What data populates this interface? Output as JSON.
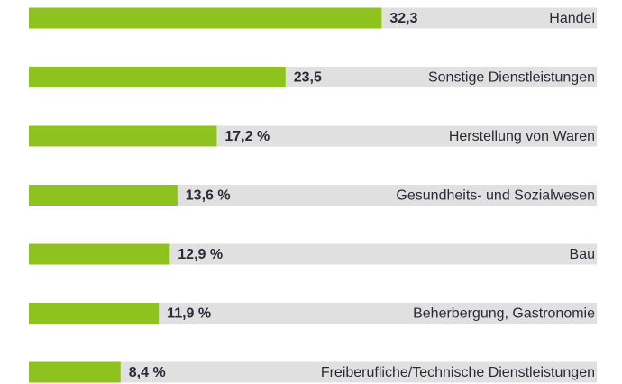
{
  "chart_data": {
    "type": "bar",
    "orientation": "horizontal",
    "categories": [
      "Handel",
      "Sonstige Dienstleistungen",
      "Herstellung von Waren",
      "Gesundheits- und Sozialwesen",
      "Bau",
      "Beherbergung, Gastronomie",
      "Freiberufliche/Technische Dienstleistungen"
    ],
    "values": [
      32.3,
      23.5,
      17.2,
      13.6,
      12.9,
      11.9,
      8.4
    ],
    "value_labels": [
      "32,3",
      "23,5",
      "17,2 %",
      "13,6 %",
      "12,9 %",
      "11,9 %",
      "8,4 %"
    ],
    "color": "#8dc21f",
    "track_color": "#e0e0e0",
    "xlim": [
      0,
      52
    ]
  }
}
